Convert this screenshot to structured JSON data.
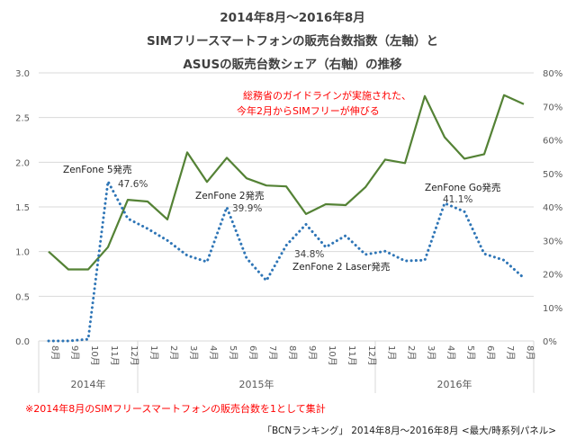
{
  "chart_data": {
    "type": "line",
    "title": [
      "2014年8月～2016年8月",
      "SIMフリースマートフォンの販売台数指数（左軸）と",
      "ASUSの販売台数シェア（右軸）の推移"
    ],
    "categories": [
      "8月",
      "9月",
      "10月",
      "11月",
      "12月",
      "1月",
      "2月",
      "3月",
      "4月",
      "5月",
      "6月",
      "7月",
      "8月",
      "9月",
      "10月",
      "11月",
      "12月",
      "1月",
      "2月",
      "3月",
      "4月",
      "5月",
      "6月",
      "7月",
      "8月"
    ],
    "year_groups": [
      {
        "label": "2014年",
        "start": 0,
        "end": 4
      },
      {
        "label": "2015年",
        "start": 5,
        "end": 16
      },
      {
        "label": "2016年",
        "start": 17,
        "end": 24
      }
    ],
    "y_left": {
      "ticks": [
        "0.0",
        "0.5",
        "1.0",
        "1.5",
        "2.0",
        "2.5",
        "3.0"
      ],
      "ylim": [
        0,
        3.0
      ]
    },
    "y_right": {
      "ticks": [
        "0%",
        "10%",
        "20%",
        "30%",
        "40%",
        "50%",
        "60%",
        "70%",
        "80%"
      ],
      "ylim": [
        0,
        80
      ]
    },
    "grid": true,
    "series": [
      {
        "name": "SIMフリースマートフォンの販売台数指数",
        "axis": "left",
        "style": "solid",
        "color": "#548235",
        "values": [
          1.0,
          0.8,
          0.8,
          1.05,
          1.58,
          1.56,
          1.36,
          2.11,
          1.78,
          2.05,
          1.82,
          1.74,
          1.73,
          1.42,
          1.53,
          1.52,
          1.72,
          2.03,
          1.99,
          2.74,
          2.28,
          2.04,
          2.09,
          2.75,
          2.65
        ]
      },
      {
        "name": "ASUSの販売台数シェア",
        "axis": "right",
        "style": "dotted",
        "color": "#2e75b6",
        "values": [
          0,
          0,
          0.5,
          47.6,
          36.5,
          33.5,
          30.0,
          25.5,
          23.6,
          39.9,
          24.7,
          18.0,
          28.5,
          34.8,
          28.0,
          31.4,
          25.8,
          26.8,
          23.9,
          24.1,
          41.1,
          38.6,
          26.0,
          24.1,
          18.8
        ]
      }
    ],
    "annotations": [
      {
        "index": 3,
        "product": "ZenFone 5発売",
        "value_label": "47.6%"
      },
      {
        "index": 9,
        "product": "ZenFone 2発売",
        "value_label": "39.9%"
      },
      {
        "index": 13,
        "product": "ZenFone 2 Laser発売",
        "value_label": "34.8%"
      },
      {
        "index": 20,
        "product": "ZenFone Go発売",
        "value_label": "41.1%"
      }
    ],
    "note_lines": [
      "総務省のガイドラインが実施された、",
      "今年2月からSIMフリーが伸びる"
    ],
    "footnote": "※2014年8月のSIMフリースマートフォンの販売台数を1として集計",
    "source": "「BCNランキング」 2014年8月～2016年8月 <最大/時系列パネル>"
  },
  "colors": {
    "red_text": "#ff0000",
    "grid": "#d9d9d9"
  }
}
